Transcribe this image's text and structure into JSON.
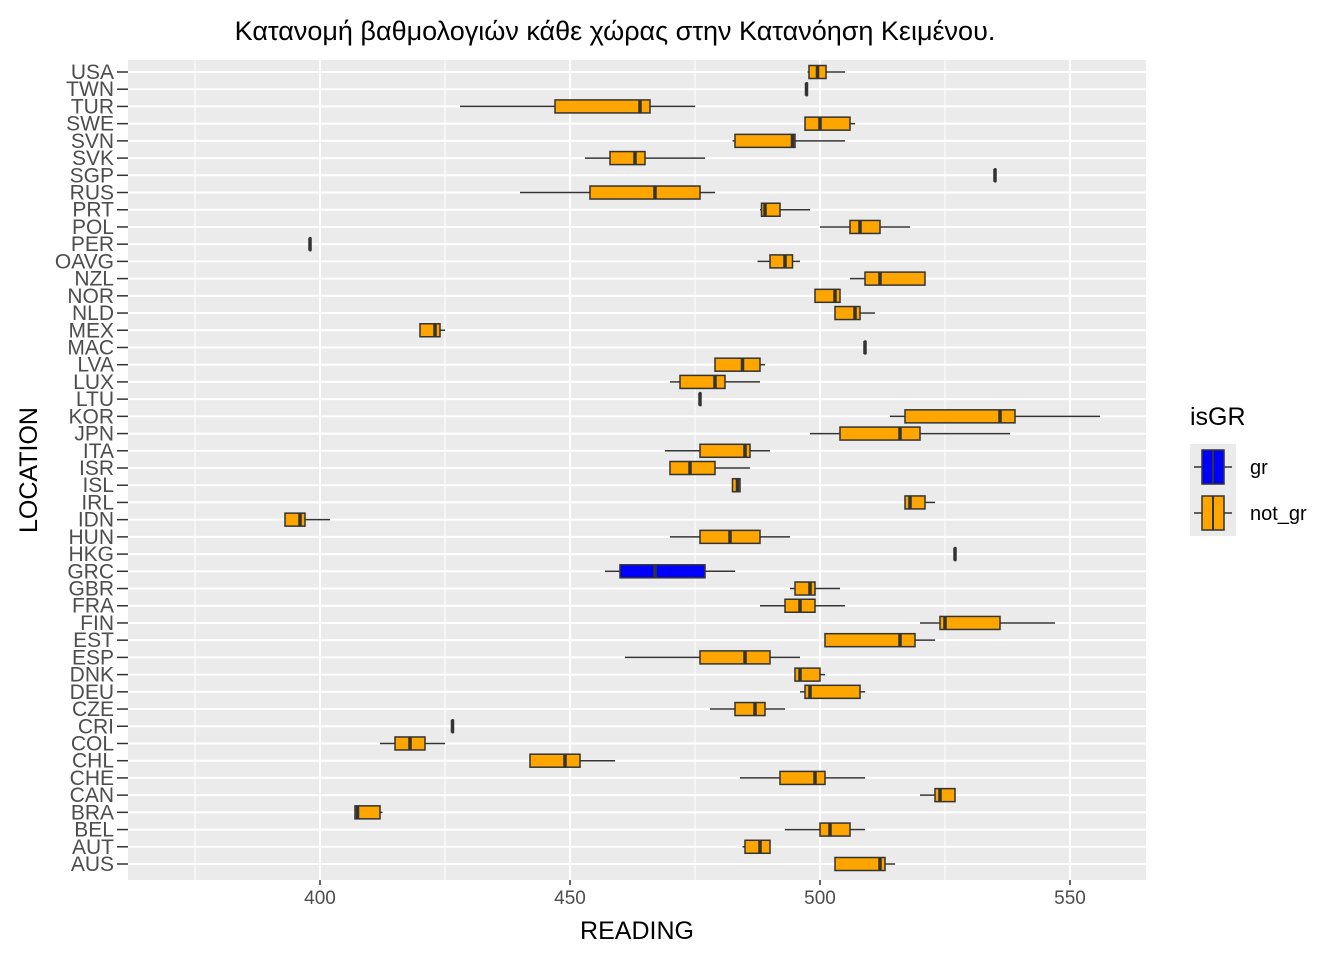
{
  "chart_data": {
    "type": "boxplot",
    "orientation": "horizontal",
    "title": "Κατανομή βαθμολογιών κάθε χώρας στην Κατανόηση Κειμένου.",
    "xlabel": "READING",
    "ylabel": "LOCATION",
    "xlim": [
      361.6,
      565.2
    ],
    "xticks": [
      400,
      450,
      500,
      550
    ],
    "grid": true,
    "legend": {
      "title": "isGR",
      "placement": "right",
      "entries": [
        {
          "label": "gr",
          "color": "#0000FF"
        },
        {
          "label": "not_gr",
          "color": "#FFA500"
        }
      ]
    },
    "colors": {
      "gr": "#0000FF",
      "not_gr": "#FFA500",
      "panel": "#EBEBEB",
      "outline": "#333333"
    },
    "boxes": [
      {
        "location": "USA",
        "group": "not_gr",
        "min": 497.5,
        "q1": 497.8,
        "median": 499.5,
        "q3": 501.2,
        "max": 505
      },
      {
        "location": "TWN",
        "group": "not_gr",
        "min": 497.3,
        "q1": 497.3,
        "median": 497.3,
        "q3": 497.3,
        "max": 497.3
      },
      {
        "location": "TUR",
        "group": "not_gr",
        "min": 428,
        "q1": 447,
        "median": 464,
        "q3": 466,
        "max": 475
      },
      {
        "location": "SWE",
        "group": "not_gr",
        "min": 497,
        "q1": 497,
        "median": 500,
        "q3": 506,
        "max": 507
      },
      {
        "location": "SVN",
        "group": "not_gr",
        "min": 482.5,
        "q1": 483,
        "median": 494.5,
        "q3": 495,
        "max": 505
      },
      {
        "location": "SVK",
        "group": "not_gr",
        "min": 453,
        "q1": 458,
        "median": 463,
        "q3": 465,
        "max": 477
      },
      {
        "location": "SGP",
        "group": "not_gr",
        "min": 535,
        "q1": 535,
        "median": 535,
        "q3": 535,
        "max": 535
      },
      {
        "location": "RUS",
        "group": "not_gr",
        "min": 440,
        "q1": 454,
        "median": 467,
        "q3": 476,
        "max": 479
      },
      {
        "location": "PRT",
        "group": "not_gr",
        "min": 488,
        "q1": 488.3,
        "median": 489,
        "q3": 492,
        "max": 498
      },
      {
        "location": "POL",
        "group": "not_gr",
        "min": 500,
        "q1": 506,
        "median": 508,
        "q3": 512,
        "max": 518
      },
      {
        "location": "PER",
        "group": "not_gr",
        "min": 398,
        "q1": 398,
        "median": 398,
        "q3": 398,
        "max": 398
      },
      {
        "location": "OAVG",
        "group": "not_gr",
        "min": 487.5,
        "q1": 490,
        "median": 493,
        "q3": 494.5,
        "max": 496
      },
      {
        "location": "NZL",
        "group": "not_gr",
        "min": 506,
        "q1": 509,
        "median": 512,
        "q3": 521,
        "max": 521
      },
      {
        "location": "NOR",
        "group": "not_gr",
        "min": 499,
        "q1": 499,
        "median": 503,
        "q3": 504,
        "max": 504
      },
      {
        "location": "NLD",
        "group": "not_gr",
        "min": 503,
        "q1": 503,
        "median": 507,
        "q3": 508,
        "max": 511
      },
      {
        "location": "MEX",
        "group": "not_gr",
        "min": 420,
        "q1": 420,
        "median": 423,
        "q3": 424,
        "max": 425
      },
      {
        "location": "MAC",
        "group": "not_gr",
        "min": 509,
        "q1": 509,
        "median": 509,
        "q3": 509,
        "max": 509
      },
      {
        "location": "LVA",
        "group": "not_gr",
        "min": 479,
        "q1": 479,
        "median": 484.5,
        "q3": 488,
        "max": 489
      },
      {
        "location": "LUX",
        "group": "not_gr",
        "min": 470,
        "q1": 472,
        "median": 479,
        "q3": 481,
        "max": 488
      },
      {
        "location": "LTU",
        "group": "not_gr",
        "min": 476,
        "q1": 476,
        "median": 476,
        "q3": 476,
        "max": 476
      },
      {
        "location": "KOR",
        "group": "not_gr",
        "min": 514,
        "q1": 517,
        "median": 536,
        "q3": 539,
        "max": 556
      },
      {
        "location": "JPN",
        "group": "not_gr",
        "min": 498,
        "q1": 504,
        "median": 516,
        "q3": 520,
        "max": 538
      },
      {
        "location": "ITA",
        "group": "not_gr",
        "min": 469,
        "q1": 476,
        "median": 485,
        "q3": 486,
        "max": 490
      },
      {
        "location": "ISR",
        "group": "not_gr",
        "min": 470,
        "q1": 470,
        "median": 474,
        "q3": 479,
        "max": 486
      },
      {
        "location": "ISL",
        "group": "not_gr",
        "min": 482.5,
        "q1": 482.5,
        "median": 483.5,
        "q3": 484,
        "max": 484
      },
      {
        "location": "IRL",
        "group": "not_gr",
        "min": 517,
        "q1": 517,
        "median": 518,
        "q3": 521,
        "max": 523
      },
      {
        "location": "IDN",
        "group": "not_gr",
        "min": 393,
        "q1": 393,
        "median": 396,
        "q3": 397,
        "max": 402
      },
      {
        "location": "HUN",
        "group": "not_gr",
        "min": 470,
        "q1": 476,
        "median": 482,
        "q3": 488,
        "max": 494
      },
      {
        "location": "HKG",
        "group": "not_gr",
        "min": 527,
        "q1": 527,
        "median": 527,
        "q3": 527,
        "max": 527
      },
      {
        "location": "GRC",
        "group": "gr",
        "min": 457,
        "q1": 460,
        "median": 467,
        "q3": 477,
        "max": 483
      },
      {
        "location": "GBR",
        "group": "not_gr",
        "min": 494,
        "q1": 495,
        "median": 498,
        "q3": 499,
        "max": 504
      },
      {
        "location": "FRA",
        "group": "not_gr",
        "min": 488,
        "q1": 493,
        "median": 496,
        "q3": 499,
        "max": 505
      },
      {
        "location": "FIN",
        "group": "not_gr",
        "min": 520,
        "q1": 524,
        "median": 525,
        "q3": 536,
        "max": 547
      },
      {
        "location": "EST",
        "group": "not_gr",
        "min": 501,
        "q1": 501,
        "median": 516,
        "q3": 519,
        "max": 523
      },
      {
        "location": "ESP",
        "group": "not_gr",
        "min": 461,
        "q1": 476,
        "median": 485,
        "q3": 490,
        "max": 496
      },
      {
        "location": "DNK",
        "group": "not_gr",
        "min": 495,
        "q1": 495,
        "median": 496,
        "q3": 500,
        "max": 501
      },
      {
        "location": "DEU",
        "group": "not_gr",
        "min": 496,
        "q1": 497,
        "median": 498,
        "q3": 508,
        "max": 509
      },
      {
        "location": "CZE",
        "group": "not_gr",
        "min": 478,
        "q1": 483,
        "median": 487,
        "q3": 489,
        "max": 493
      },
      {
        "location": "CRI",
        "group": "not_gr",
        "min": 426.5,
        "q1": 426.5,
        "median": 426.5,
        "q3": 426.5,
        "max": 426.5
      },
      {
        "location": "COL",
        "group": "not_gr",
        "min": 412,
        "q1": 415,
        "median": 418,
        "q3": 421,
        "max": 425
      },
      {
        "location": "CHL",
        "group": "not_gr",
        "min": 442,
        "q1": 442,
        "median": 449,
        "q3": 452,
        "max": 459
      },
      {
        "location": "CHE",
        "group": "not_gr",
        "min": 484,
        "q1": 492,
        "median": 499,
        "q3": 501,
        "max": 509
      },
      {
        "location": "CAN",
        "group": "not_gr",
        "min": 520,
        "q1": 523,
        "median": 524,
        "q3": 527,
        "max": 527
      },
      {
        "location": "BRA",
        "group": "not_gr",
        "min": 407,
        "q1": 407,
        "median": 407.5,
        "q3": 412,
        "max": 412.5
      },
      {
        "location": "BEL",
        "group": "not_gr",
        "min": 493,
        "q1": 500,
        "median": 502,
        "q3": 506,
        "max": 509
      },
      {
        "location": "AUT",
        "group": "not_gr",
        "min": 484.5,
        "q1": 485,
        "median": 488,
        "q3": 490,
        "max": 490
      },
      {
        "location": "AUS",
        "group": "not_gr",
        "min": 503,
        "q1": 503,
        "median": 512,
        "q3": 513,
        "max": 515
      }
    ]
  }
}
